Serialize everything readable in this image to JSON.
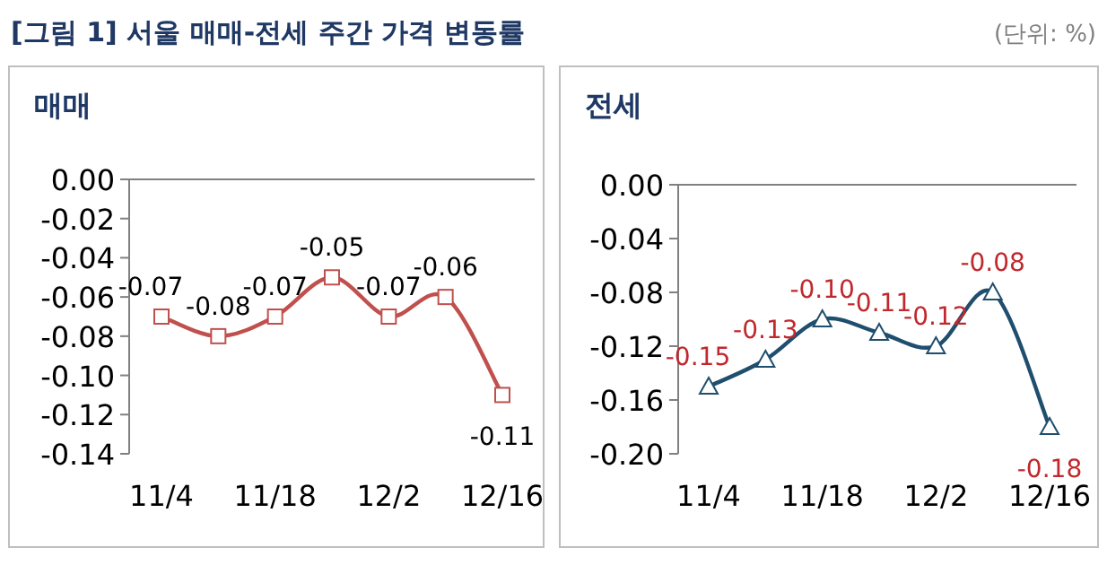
{
  "chart_data": [
    {
      "type": "line",
      "title": "매매",
      "annotations": [
        "[그림 1] 서울 매매-전세 주간 가격 변동률",
        "(단위: %)"
      ],
      "categories": [
        "11/4",
        null,
        "11/18",
        null,
        "12/2",
        null,
        "12/16"
      ],
      "series": [
        {
          "color": "#c0504d",
          "values": [
            -0.07,
            -0.08,
            -0.07,
            -0.05,
            -0.07,
            -0.06,
            -0.11
          ],
          "value_labels": [
            "-0.07",
            "-0.08",
            "-0.07",
            "-0.05",
            "-0.07",
            "-0.06",
            "-0.11"
          ]
        }
      ],
      "marker": "square",
      "ylim": [
        -0.14,
        0
      ],
      "yticks": [
        {
          "value": 0,
          "label": "0.00"
        },
        {
          "value": -0.02,
          "label": "-0.02"
        },
        {
          "value": -0.04,
          "label": "-0.04"
        },
        {
          "value": -0.06,
          "label": "-0.06"
        },
        {
          "value": -0.08,
          "label": "-0.08"
        },
        {
          "value": -0.1,
          "label": "-0.10"
        },
        {
          "value": -0.12,
          "label": "-0.12"
        },
        {
          "value": -0.14,
          "label": "-0.14"
        }
      ]
    },
    {
      "type": "line",
      "title": "전세",
      "categories": [
        "11/4",
        null,
        "11/18",
        null,
        "12/2",
        null,
        "12/16"
      ],
      "series": [
        {
          "color": "#1f4e6e",
          "values": [
            -0.15,
            -0.13,
            -0.1,
            -0.11,
            -0.12,
            -0.08,
            -0.18
          ],
          "value_labels": [
            "-0.15",
            "-0.13",
            "-0.10",
            "-0.11",
            "-0.12",
            "-0.08",
            "-0.18"
          ]
        }
      ],
      "marker": "triangle",
      "ylim": [
        -0.2,
        0
      ],
      "yticks": [
        {
          "value": 0,
          "label": "0.00"
        },
        {
          "value": -0.04,
          "label": "-0.04"
        },
        {
          "value": -0.08,
          "label": "-0.08"
        },
        {
          "value": -0.12,
          "label": "-0.12"
        },
        {
          "value": -0.16,
          "label": "-0.16"
        },
        {
          "value": -0.2,
          "label": "-0.20"
        }
      ]
    }
  ]
}
